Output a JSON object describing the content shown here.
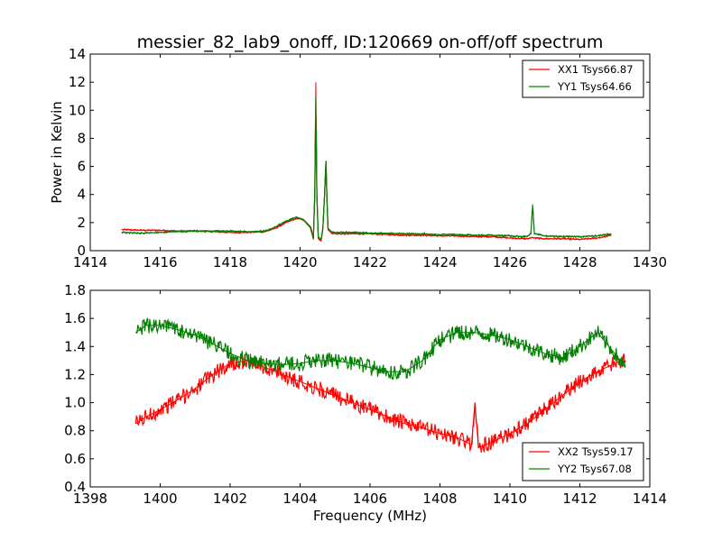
{
  "chart_data": [
    {
      "type": "line",
      "title": "messier_82_lab9_onoff, ID:120669 on-off/off spectrum",
      "xlabel": "",
      "ylabel": "Power in Kelvin",
      "xlim": [
        1414,
        1430
      ],
      "ylim": [
        0,
        14
      ],
      "xticks": [
        "1414",
        "1416",
        "1418",
        "1420",
        "1422",
        "1424",
        "1426",
        "1428",
        "1430"
      ],
      "yticks": [
        "0",
        "2",
        "4",
        "6",
        "8",
        "10",
        "12",
        "14"
      ],
      "legend_position": "top-right",
      "series": [
        {
          "name": "XX1 Tsys66.87",
          "color": "#ff0000",
          "x": [
            1414.9,
            1415.5,
            1416.0,
            1416.5,
            1417.0,
            1417.5,
            1418.0,
            1418.5,
            1419.0,
            1419.3,
            1419.6,
            1419.9,
            1420.1,
            1420.3,
            1420.38,
            1420.42,
            1420.45,
            1420.48,
            1420.52,
            1420.6,
            1420.65,
            1420.7,
            1420.74,
            1420.77,
            1420.8,
            1420.9,
            1421.0,
            1421.5,
            1422.0,
            1422.5,
            1423.0,
            1423.5,
            1424.0,
            1424.5,
            1425.0,
            1425.5,
            1426.0,
            1426.5,
            1426.6,
            1426.65,
            1426.7,
            1427.0,
            1427.5,
            1428.0,
            1428.5,
            1428.9
          ],
          "values": [
            1.5,
            1.45,
            1.45,
            1.4,
            1.4,
            1.35,
            1.3,
            1.3,
            1.35,
            1.6,
            2.0,
            2.3,
            2.2,
            1.6,
            0.8,
            4.0,
            12.0,
            4.0,
            0.9,
            0.7,
            1.5,
            4.0,
            6.3,
            3.5,
            1.5,
            1.25,
            1.2,
            1.2,
            1.2,
            1.15,
            1.1,
            1.1,
            1.05,
            1.05,
            1.0,
            1.0,
            0.9,
            0.85,
            0.9,
            0.95,
            0.9,
            0.85,
            0.85,
            0.8,
            0.9,
            1.1
          ]
        },
        {
          "name": "YY1 Tsys64.66",
          "color": "#008000",
          "x": [
            1414.9,
            1415.5,
            1416.0,
            1416.5,
            1417.0,
            1417.5,
            1418.0,
            1418.5,
            1419.0,
            1419.3,
            1419.6,
            1419.9,
            1420.1,
            1420.3,
            1420.38,
            1420.42,
            1420.45,
            1420.48,
            1420.52,
            1420.6,
            1420.65,
            1420.7,
            1420.74,
            1420.77,
            1420.8,
            1420.9,
            1421.0,
            1421.5,
            1422.0,
            1422.5,
            1423.0,
            1423.5,
            1424.0,
            1424.5,
            1425.0,
            1425.5,
            1426.0,
            1426.5,
            1426.6,
            1426.65,
            1426.7,
            1427.0,
            1427.5,
            1428.0,
            1428.5,
            1428.9
          ],
          "values": [
            1.3,
            1.25,
            1.3,
            1.35,
            1.4,
            1.4,
            1.4,
            1.35,
            1.4,
            1.7,
            2.1,
            2.4,
            2.2,
            1.7,
            0.9,
            4.0,
            11.0,
            4.0,
            1.0,
            0.8,
            1.5,
            4.0,
            6.4,
            3.5,
            1.6,
            1.35,
            1.3,
            1.3,
            1.25,
            1.25,
            1.2,
            1.2,
            1.15,
            1.15,
            1.1,
            1.1,
            1.05,
            1.0,
            1.2,
            3.3,
            1.2,
            1.05,
            1.0,
            1.0,
            1.05,
            1.2
          ]
        }
      ]
    },
    {
      "type": "line",
      "title": "",
      "xlabel": "Frequency (MHz)",
      "ylabel": "",
      "xlim": [
        1398,
        1414
      ],
      "ylim": [
        0.4,
        1.8
      ],
      "xticks": [
        "1398",
        "1400",
        "1402",
        "1404",
        "1406",
        "1408",
        "1410",
        "1412",
        "1414"
      ],
      "yticks": [
        "0.4",
        "0.6",
        "0.8",
        "1.0",
        "1.2",
        "1.4",
        "1.6",
        "1.8"
      ],
      "legend_position": "bottom-right",
      "series": [
        {
          "name": "XX2 Tsys59.17",
          "color": "#ff0000",
          "x": [
            1399.3,
            1399.6,
            1400.0,
            1400.5,
            1401.0,
            1401.5,
            1402.0,
            1402.5,
            1403.0,
            1403.5,
            1404.0,
            1404.5,
            1405.0,
            1405.5,
            1406.0,
            1406.5,
            1407.0,
            1407.5,
            1408.0,
            1408.5,
            1408.9,
            1409.0,
            1409.1,
            1409.5,
            1410.0,
            1410.5,
            1411.0,
            1411.5,
            1412.0,
            1412.5,
            1413.0,
            1413.3
          ],
          "values": [
            0.85,
            0.9,
            0.95,
            1.02,
            1.1,
            1.2,
            1.28,
            1.3,
            1.25,
            1.2,
            1.15,
            1.1,
            1.05,
            1.0,
            0.95,
            0.9,
            0.85,
            0.82,
            0.78,
            0.75,
            0.7,
            1.0,
            0.68,
            0.72,
            0.78,
            0.85,
            0.95,
            1.05,
            1.15,
            1.22,
            1.28,
            1.3
          ]
        },
        {
          "name": "YY2 Tsys67.08",
          "color": "#008000",
          "x": [
            1399.3,
            1399.6,
            1400.0,
            1400.5,
            1401.0,
            1401.5,
            1402.0,
            1402.5,
            1403.0,
            1403.5,
            1404.0,
            1404.5,
            1405.0,
            1405.5,
            1406.0,
            1406.5,
            1407.0,
            1407.5,
            1408.0,
            1408.5,
            1409.0,
            1409.5,
            1410.0,
            1410.5,
            1411.0,
            1411.5,
            1412.0,
            1412.5,
            1413.0,
            1413.3
          ],
          "values": [
            1.5,
            1.55,
            1.55,
            1.52,
            1.48,
            1.42,
            1.35,
            1.3,
            1.28,
            1.27,
            1.28,
            1.3,
            1.3,
            1.28,
            1.25,
            1.22,
            1.22,
            1.3,
            1.45,
            1.5,
            1.5,
            1.48,
            1.45,
            1.4,
            1.35,
            1.32,
            1.4,
            1.5,
            1.35,
            1.25
          ]
        }
      ]
    }
  ]
}
